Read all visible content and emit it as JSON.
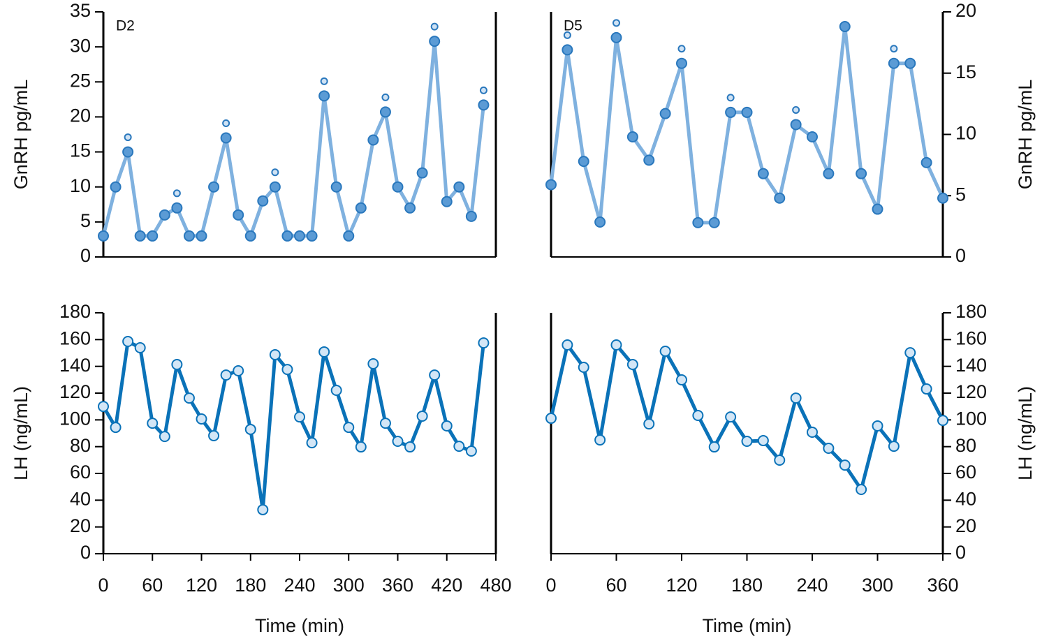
{
  "chart_data": [
    {
      "type": "line",
      "panel_label": "D2",
      "y_label": "GnRH pg/mL",
      "y_axis_side": "left",
      "color": "#7fb1df",
      "marker_fill": "#5b9bd5",
      "marker_edge": "#2a78bd",
      "x": [
        0,
        15,
        30,
        45,
        60,
        75,
        90,
        105,
        120,
        135,
        150,
        165,
        180,
        195,
        210,
        225,
        240,
        255,
        270,
        285,
        300,
        315,
        330,
        345,
        360,
        375,
        390,
        405,
        420,
        435,
        450,
        465
      ],
      "series": [
        {
          "values": [
            3,
            10,
            15,
            3,
            3,
            6,
            7,
            3,
            3,
            10,
            17,
            6,
            3,
            8,
            10,
            3,
            3,
            3,
            23,
            10,
            3,
            7,
            16.7,
            20.7,
            10,
            7,
            12,
            30.8,
            7.9,
            10,
            5.8,
            21.7
          ]
        }
      ],
      "pulses": [
        30,
        90,
        150,
        210,
        270,
        345,
        405,
        465
      ],
      "xlim": [
        0,
        480
      ],
      "ylim": [
        0,
        35
      ],
      "yticks": [
        0,
        5,
        10,
        15,
        20,
        25,
        30,
        35
      ]
    },
    {
      "type": "line",
      "panel_label": "D5",
      "y_label": "GnRH pg/mL",
      "y_axis_side": "right",
      "color": "#7fb1df",
      "marker_fill": "#5b9bd5",
      "marker_edge": "#2a78bd",
      "x": [
        0,
        15,
        30,
        45,
        60,
        75,
        90,
        105,
        120,
        135,
        150,
        165,
        180,
        195,
        210,
        225,
        240,
        255,
        270,
        285,
        300,
        315,
        330,
        345,
        360
      ],
      "series": [
        {
          "values": [
            5.9,
            16.9,
            7.8,
            2.85,
            17.9,
            9.8,
            7.9,
            11.7,
            15.8,
            2.8,
            2.8,
            11.8,
            11.8,
            6.8,
            4.8,
            10.8,
            9.8,
            6.8,
            18.8,
            6.8,
            3.9,
            15.8,
            15.8,
            7.7,
            4.8
          ]
        }
      ],
      "pulses": [
        15,
        60,
        120,
        165,
        225,
        315
      ],
      "xlim": [
        0,
        360
      ],
      "ylim": [
        0,
        20
      ],
      "yticks": [
        0,
        5,
        10,
        15,
        20
      ]
    },
    {
      "type": "line",
      "y_label": "LH (ng/mL)",
      "x_label": "Time (min)",
      "y_axis_side": "left",
      "color": "#0a72b8",
      "marker_fill": "#d3e6f6",
      "marker_edge": "#0a72b8",
      "x": [
        0,
        15,
        30,
        45,
        60,
        75,
        90,
        105,
        120,
        135,
        150,
        165,
        180,
        195,
        210,
        225,
        240,
        255,
        270,
        285,
        300,
        315,
        330,
        345,
        360,
        375,
        390,
        405,
        420,
        435,
        450,
        465
      ],
      "series": [
        {
          "values": [
            110,
            94.4,
            158.6,
            153.9,
            97.5,
            87.6,
            141.4,
            116.3,
            100.7,
            88.2,
            133.5,
            136.7,
            92.9,
            32.9,
            148.7,
            137.7,
            102.2,
            82.9,
            150.8,
            122.1,
            94.4,
            79.8,
            141.9,
            97.5,
            84,
            79.8,
            102.8,
            133.5,
            95.5,
            80.3,
            76.7,
            157.5
          ]
        }
      ],
      "xlim": [
        0,
        480
      ],
      "xticks": [
        0,
        60,
        120,
        180,
        240,
        300,
        360,
        420,
        480
      ],
      "ylim": [
        0,
        180
      ],
      "yticks": [
        0,
        20,
        40,
        60,
        80,
        100,
        120,
        140,
        160,
        180
      ]
    },
    {
      "type": "line",
      "y_label": "LH (ng/mL)",
      "x_label": "Time (min)",
      "y_axis_side": "right",
      "color": "#0a72b8",
      "marker_fill": "#d3e6f6",
      "marker_edge": "#0a72b8",
      "x": [
        0,
        15,
        30,
        45,
        60,
        75,
        90,
        105,
        120,
        135,
        150,
        165,
        180,
        195,
        210,
        225,
        240,
        255,
        270,
        285,
        300,
        315,
        330,
        345,
        360
      ],
      "series": [
        {
          "values": [
            101.2,
            156,
            139.3,
            85,
            156,
            141.4,
            97,
            151.3,
            129.9,
            103.3,
            79.8,
            102.2,
            84,
            84.5,
            69.9,
            116.3,
            90.8,
            78.8,
            66.2,
            48,
            95.5,
            80.3,
            150.2,
            123.1,
            99.6
          ]
        }
      ],
      "xlim": [
        0,
        360
      ],
      "xticks": [
        0,
        60,
        120,
        180,
        240,
        300,
        360
      ],
      "ylim": [
        0,
        180
      ],
      "yticks": [
        0,
        20,
        40,
        60,
        80,
        100,
        120,
        140,
        160,
        180
      ]
    }
  ]
}
